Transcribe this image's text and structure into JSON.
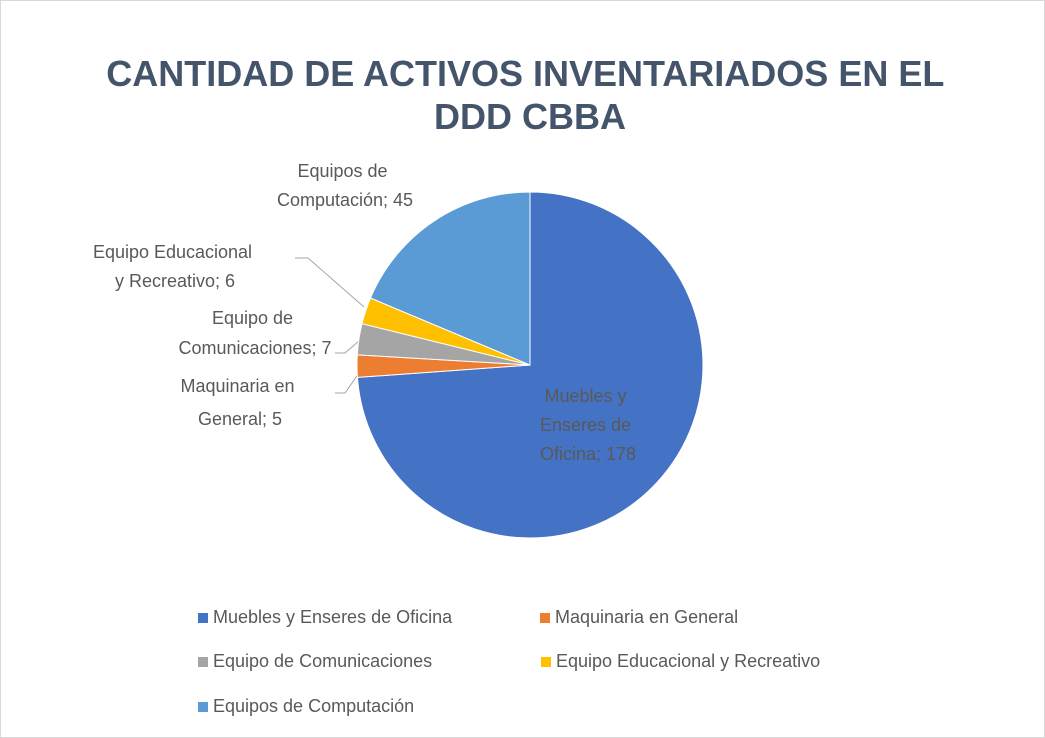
{
  "chart_data": {
    "type": "pie",
    "title": "CANTIDAD DE ACTIVOS INVENTARIADOS EN EL DDD CBBA",
    "categories": [
      "Muebles y Enseres de Oficina",
      "Maquinaria en General",
      "Equipo de Comunicaciones",
      "Equipo Educacional y Recreativo",
      "Equipos de Computación"
    ],
    "values": [
      178,
      5,
      7,
      6,
      45
    ],
    "value_labels": [
      "Muebles y Enseres de Oficina; 178",
      "Maquinaria en General; 5",
      "Equipo de Comunicaciones; 7",
      "Equipo Educacional y Recreativo; 6",
      "Equipos de Computación; 45"
    ],
    "colors": [
      "#4472c4",
      "#ed7d31",
      "#a5a5a5",
      "#ffc000",
      "#5b9bd5"
    ],
    "legend": "bottom"
  }
}
